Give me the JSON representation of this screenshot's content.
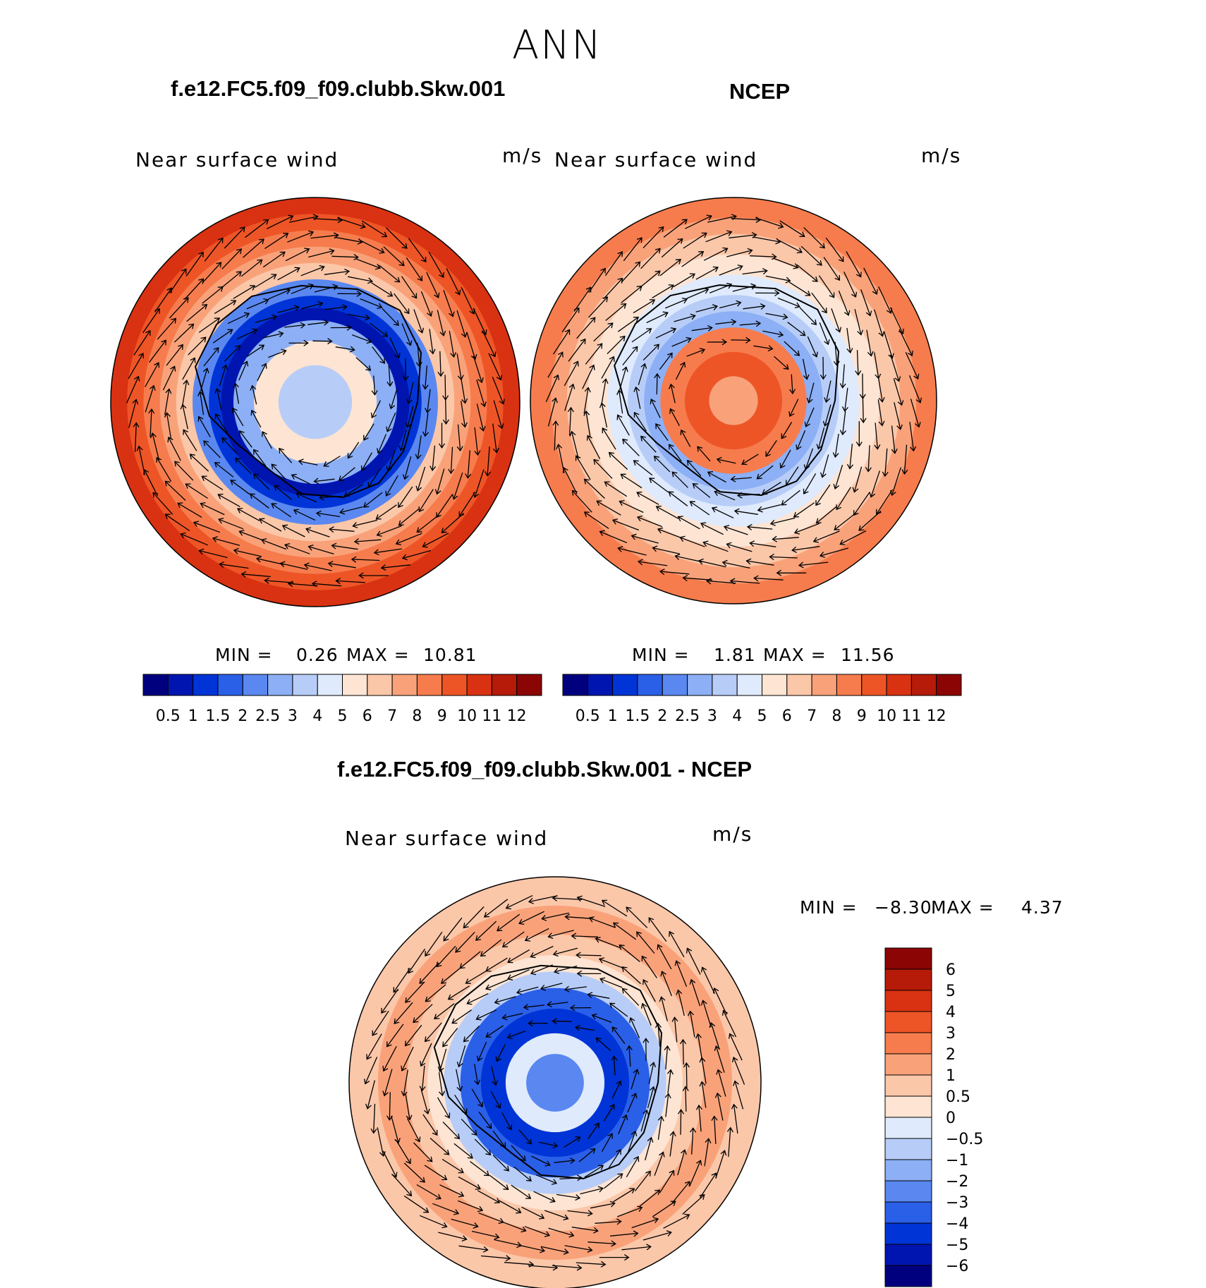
{
  "figure": {
    "season": "ANN",
    "title_left": "f.e12.FC5.f09_f09.clubb.Skw.001",
    "title_right": "NCEP",
    "title_diff": "f.e12.FC5.f09_f09.clubb.Skw.001 - NCEP"
  },
  "chart_data": [
    {
      "type": "heatmap",
      "projection": "south-polar-stereographic",
      "title": "f.e12.FC5.f09_f09.clubb.Skw.001",
      "subtitle": "Near surface wind",
      "units": "m/s",
      "min_label": "MIN =",
      "max_label": "MAX =",
      "min": "0.26",
      "max": "10.81",
      "pattern": "model",
      "levels": [
        "0.5",
        "1",
        "1.5",
        "2",
        "2.5",
        "3",
        "4",
        "5",
        "6",
        "7",
        "8",
        "9",
        "10",
        "11",
        "12"
      ],
      "colors": [
        "#00007f",
        "#0015b0",
        "#0034d6",
        "#2a5fe8",
        "#5a88f0",
        "#8caff5",
        "#b7cdf8",
        "#dfeafc",
        "#fde4d3",
        "#fbc7a9",
        "#f9a27a",
        "#f67c4d",
        "#ee5526",
        "#d93212",
        "#b51b08",
        "#8c0505"
      ]
    },
    {
      "type": "heatmap",
      "projection": "south-polar-stereographic",
      "title": "NCEP",
      "subtitle": "Near surface wind",
      "units": "m/s",
      "min_label": "MIN =",
      "max_label": "MAX =",
      "min": "1.81",
      "max": "11.56",
      "pattern": "obs",
      "levels": [
        "0.5",
        "1",
        "1.5",
        "2",
        "2.5",
        "3",
        "4",
        "5",
        "6",
        "7",
        "8",
        "9",
        "10",
        "11",
        "12"
      ],
      "colors": [
        "#00007f",
        "#0015b0",
        "#0034d6",
        "#2a5fe8",
        "#5a88f0",
        "#8caff5",
        "#b7cdf8",
        "#dfeafc",
        "#fde4d3",
        "#fbc7a9",
        "#f9a27a",
        "#f67c4d",
        "#ee5526",
        "#d93212",
        "#b51b08",
        "#8c0505"
      ]
    },
    {
      "type": "heatmap",
      "projection": "south-polar-stereographic",
      "title": "f.e12.FC5.f09_f09.clubb.Skw.001 - NCEP",
      "subtitle": "Near surface wind",
      "units": "m/s",
      "min_label": "MIN =",
      "max_label": "MAX =",
      "min": "−8.30",
      "max": "4.37",
      "pattern": "diff",
      "levels": [
        "6",
        "5",
        "4",
        "3",
        "2",
        "1",
        "0.5",
        "0",
        "−0.5",
        "−1",
        "−2",
        "−3",
        "−4",
        "−5",
        "−6"
      ],
      "colors": [
        "#8c0505",
        "#b51b08",
        "#d93212",
        "#ee5526",
        "#f67c4d",
        "#f9a27a",
        "#fbc7a9",
        "#fde4d3",
        "#dfeafc",
        "#b7cdf8",
        "#8caff5",
        "#5a88f0",
        "#2a5fe8",
        "#0034d6",
        "#0015b0",
        "#00007f"
      ]
    }
  ]
}
